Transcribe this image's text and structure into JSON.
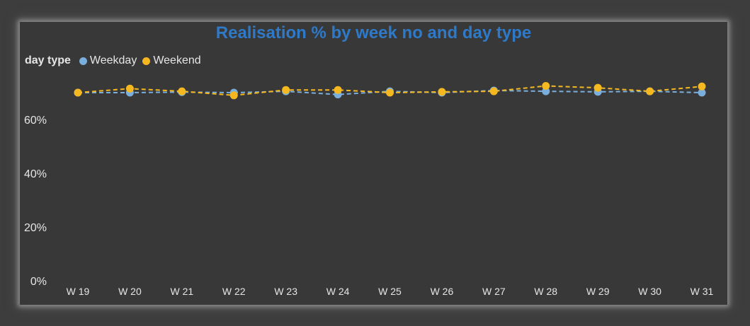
{
  "chart_data": {
    "type": "line",
    "title": "Realisation % by week no and day type",
    "legend_title": "day type",
    "legend_position": "top-left",
    "grid": false,
    "categories": [
      "W 19",
      "W 20",
      "W 21",
      "W 22",
      "W 23",
      "W 24",
      "W 25",
      "W 26",
      "W 27",
      "W 28",
      "W 29",
      "W 30",
      "W 31"
    ],
    "ylim": [
      0,
      0.7
    ],
    "yticks": [
      0,
      0.2,
      0.4,
      0.6
    ],
    "ytick_labels": [
      "0%",
      "20%",
      "40%",
      "60%"
    ],
    "series": [
      {
        "name": "Weekday",
        "color": "#7aaedc",
        "values": [
          0.7,
          0.7,
          0.702,
          0.7,
          0.705,
          0.693,
          0.705,
          0.7,
          0.708,
          0.705,
          0.703,
          0.705,
          0.7
        ]
      },
      {
        "name": "Weekend",
        "color": "#f5b820",
        "values": [
          0.7,
          0.715,
          0.705,
          0.69,
          0.71,
          0.71,
          0.7,
          0.703,
          0.705,
          0.725,
          0.718,
          0.705,
          0.723
        ]
      }
    ]
  }
}
